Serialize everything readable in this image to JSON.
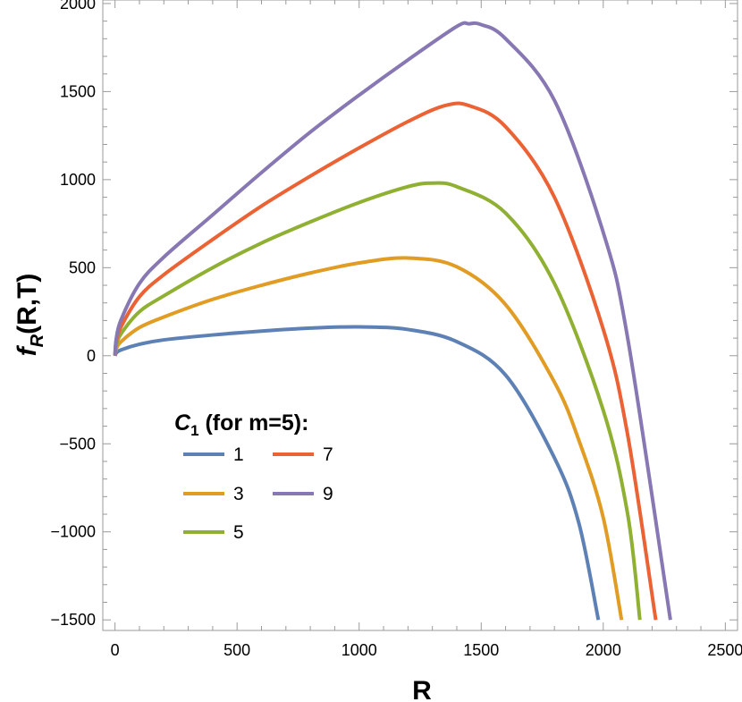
{
  "chart_data": {
    "type": "line",
    "xlabel": "R",
    "ylabel": {
      "base": "f",
      "sub": "R",
      "rest": "(R,T)"
    },
    "xlim": [
      -50,
      2550
    ],
    "ylim": [
      -1560,
      2020
    ],
    "xticks": [
      0,
      500,
      1000,
      1500,
      2000,
      2500
    ],
    "yticks": [
      -1500,
      -1000,
      -500,
      0,
      500,
      1000,
      1500,
      2000
    ],
    "xtick_labels": [
      "0",
      "500",
      "1000",
      "1500",
      "2000",
      "2500"
    ],
    "ytick_labels": [
      "−1500",
      "−1000",
      "−500",
      "0",
      "500",
      "1000",
      "1500",
      "2000"
    ],
    "grid": false,
    "legend": {
      "title": {
        "var": "C",
        "sub": "1",
        "rest": " (for m=5):"
      },
      "placement": "center-left"
    },
    "series": [
      {
        "name": "1",
        "color": "#5E81B5",
        "x": [
          0,
          5,
          25,
          100,
          200,
          400,
          600,
          800,
          1000,
          1200,
          1400,
          1600,
          1800,
          1900,
          1980
        ],
        "y": [
          0,
          15,
          33,
          65,
          90,
          118,
          140,
          157,
          164,
          149,
          80,
          -110,
          -580,
          -950,
          -1500
        ]
      },
      {
        "name": "3",
        "color": "#E19C24",
        "x": [
          0,
          5,
          25,
          100,
          200,
          400,
          600,
          800,
          1000,
          1200,
          1400,
          1600,
          1800,
          1900,
          2000,
          2075
        ],
        "y": [
          0,
          38,
          80,
          160,
          220,
          320,
          400,
          470,
          527,
          555,
          505,
          290,
          -150,
          -480,
          -920,
          -1500
        ]
      },
      {
        "name": "5",
        "color": "#8FB032",
        "x": [
          0,
          5,
          25,
          100,
          200,
          400,
          600,
          800,
          1000,
          1200,
          1300,
          1400,
          1600,
          1800,
          2000,
          2100,
          2150
        ],
        "y": [
          0,
          58,
          125,
          250,
          340,
          500,
          640,
          760,
          870,
          960,
          980,
          960,
          810,
          410,
          -310,
          -900,
          -1500
        ]
      },
      {
        "name": "7",
        "color": "#EB6235",
        "x": [
          0,
          5,
          25,
          100,
          200,
          400,
          600,
          800,
          1000,
          1200,
          1350,
          1450,
          1600,
          1800,
          2000,
          2100,
          2215
        ],
        "y": [
          0,
          78,
          165,
          335,
          460,
          660,
          850,
          1020,
          1180,
          1330,
          1420,
          1420,
          1300,
          900,
          150,
          -450,
          -1500
        ]
      },
      {
        "name": "9",
        "color": "#8778B3",
        "x": [
          0,
          5,
          25,
          100,
          200,
          400,
          600,
          800,
          1000,
          1200,
          1400,
          1450,
          1500,
          1600,
          1800,
          2000,
          2100,
          2275
        ],
        "y": [
          0,
          95,
          205,
          410,
          560,
          800,
          1040,
          1270,
          1480,
          1680,
          1870,
          1885,
          1880,
          1800,
          1450,
          700,
          100,
          -1500
        ]
      }
    ]
  }
}
